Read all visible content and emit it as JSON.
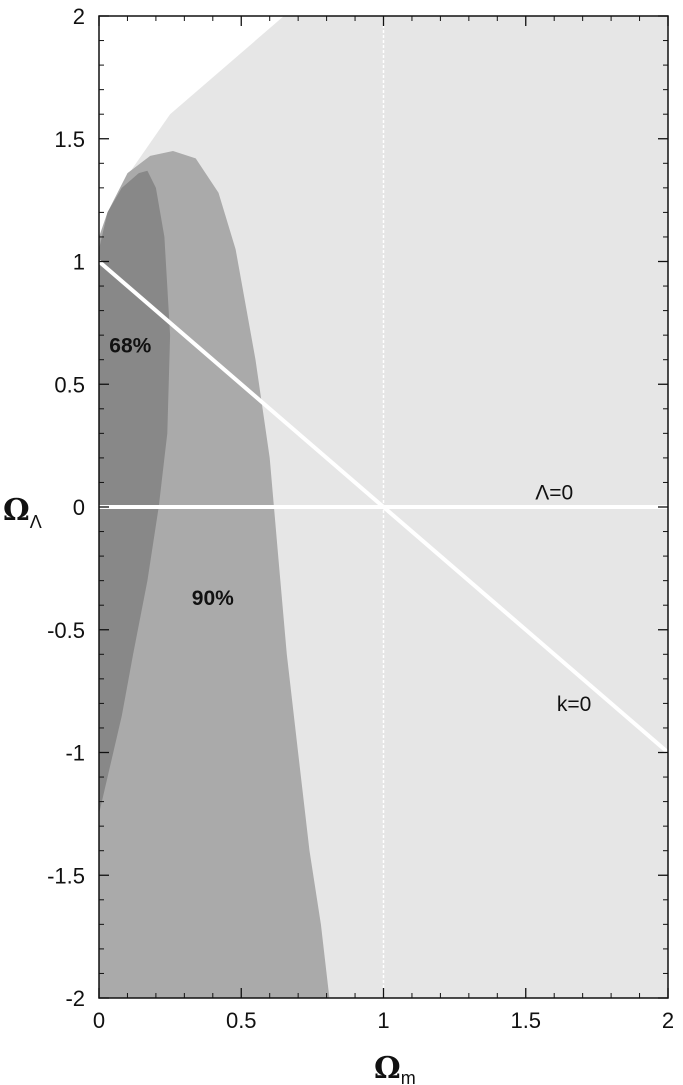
{
  "chart_data": {
    "type": "area",
    "xlabel_main": "Ω",
    "xlabel_sub": "m",
    "ylabel_main": "Ω",
    "ylabel_sub": "Λ",
    "xlim": [
      0,
      2
    ],
    "ylim": [
      -2,
      2
    ],
    "x_ticks": [
      0,
      0.5,
      1,
      1.5,
      2
    ],
    "x_tick_labels": [
      "0",
      "0.5",
      "1",
      "1.5",
      "2"
    ],
    "y_ticks": [
      -2,
      -1.5,
      -1,
      -0.5,
      0,
      0.5,
      1,
      1.5,
      2
    ],
    "y_tick_labels": [
      "-2",
      "-1.5",
      "-1",
      "-0.5",
      "0",
      "0.5",
      "1",
      "1.5",
      "2"
    ],
    "grid": false,
    "colors": {
      "outer": "#e6e6e6",
      "c90": "#aaaaaa",
      "c68": "#888888",
      "lines": "#ffffff",
      "axes": "#111111"
    },
    "regions": [
      {
        "name": "outer",
        "polygon": [
          [
            0,
            -2
          ],
          [
            0,
            1.1
          ],
          [
            0.1,
            1.35
          ],
          [
            0.25,
            1.6
          ],
          [
            0.65,
            2
          ],
          [
            2,
            2
          ],
          [
            2,
            -2
          ]
        ]
      },
      {
        "name": "90%",
        "label": "90%",
        "label_pos": [
          0.4,
          -0.4
        ],
        "polygon": [
          [
            0,
            -1.4
          ],
          [
            0,
            1.1
          ],
          [
            0.03,
            1.2
          ],
          [
            0.1,
            1.36
          ],
          [
            0.18,
            1.43
          ],
          [
            0.26,
            1.45
          ],
          [
            0.34,
            1.42
          ],
          [
            0.42,
            1.28
          ],
          [
            0.48,
            1.05
          ],
          [
            0.55,
            0.6
          ],
          [
            0.6,
            0.2
          ],
          [
            0.63,
            -0.2
          ],
          [
            0.66,
            -0.6
          ],
          [
            0.7,
            -1.0
          ],
          [
            0.74,
            -1.4
          ],
          [
            0.78,
            -1.7
          ],
          [
            0.81,
            -2
          ],
          [
            0,
            -2
          ]
        ]
      },
      {
        "name": "68%",
        "label": "68%",
        "label_pos": [
          0.11,
          0.63
        ],
        "polygon": [
          [
            0,
            -1.25
          ],
          [
            0,
            1.05
          ],
          [
            0.03,
            1.2
          ],
          [
            0.08,
            1.3
          ],
          [
            0.14,
            1.36
          ],
          [
            0.17,
            1.37
          ],
          [
            0.2,
            1.3
          ],
          [
            0.23,
            1.1
          ],
          [
            0.25,
            0.7
          ],
          [
            0.24,
            0.3
          ],
          [
            0.21,
            0
          ],
          [
            0.17,
            -0.3
          ],
          [
            0.12,
            -0.6
          ],
          [
            0.08,
            -0.85
          ],
          [
            0.04,
            -1.05
          ],
          [
            0,
            -1.25
          ]
        ]
      }
    ],
    "lines": [
      {
        "name": "Λ=0",
        "label": "Λ=0",
        "label_pos": [
          1.6,
          0.03
        ],
        "points": [
          [
            0,
            0
          ],
          [
            2,
            0
          ]
        ],
        "dashed": false
      },
      {
        "name": "k=0",
        "label": "k=0",
        "label_pos": [
          1.67,
          -0.83
        ],
        "points": [
          [
            0,
            1
          ],
          [
            2,
            -1
          ]
        ],
        "dashed": false
      },
      {
        "name": "omega-m-1",
        "points": [
          [
            1,
            -2
          ],
          [
            1,
            2
          ]
        ],
        "dashed": true
      }
    ]
  }
}
